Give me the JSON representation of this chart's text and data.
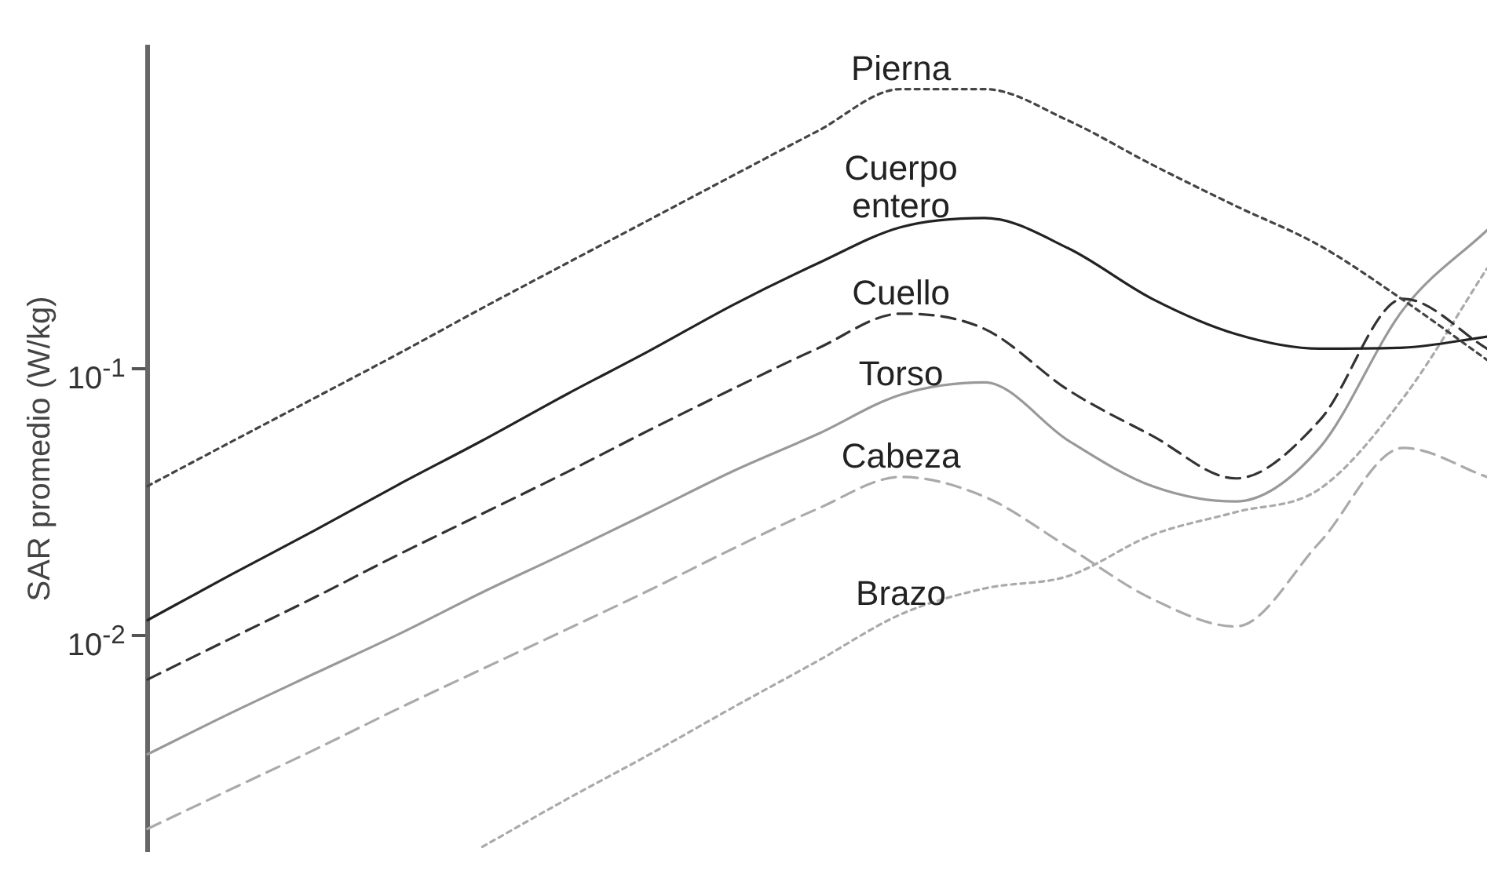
{
  "chart_data": {
    "type": "line",
    "ylabel": "SAR promedio (W/kg)",
    "log": "y",
    "grid": false,
    "legend": false,
    "tick_labels": "y",
    "marker": "none",
    "categories": [
      null,
      null,
      null,
      null,
      null,
      null,
      null,
      null,
      null,
      null,
      null,
      null,
      null,
      null,
      null,
      null,
      null
    ],
    "ylim": [
      0.00156,
      1.61
    ],
    "yticks": [
      {
        "value": 0.01,
        "label": "10$^{-2}$"
      },
      {
        "value": 0.1,
        "label": "10$^{-1}$"
      }
    ],
    "series": [
      {
        "name": "Pierna",
        "color": "#444444",
        "line_style": "dotted",
        "values": [
          0.0363,
          0.0532,
          0.0778,
          0.114,
          0.169,
          0.248,
          0.363,
          0.532,
          0.778,
          1.12,
          1.12,
          0.853,
          0.583,
          0.408,
          0.29,
          0.181,
          0.108
        ]
      },
      {
        "name": "Cuerpo entero",
        "color": "#222222",
        "line_style": "solid",
        "values": [
          0.0114,
          0.0169,
          0.0248,
          0.0368,
          0.0538,
          0.08,
          0.117,
          0.174,
          0.248,
          0.34,
          0.368,
          0.283,
          0.183,
          0.135,
          0.119,
          0.12,
          0.132
        ]
      },
      {
        "name": "Cuello",
        "color": "#333333",
        "line_style": "dashed",
        "values": [
          0.00683,
          0.00975,
          0.0139,
          0.0201,
          0.0286,
          0.0408,
          0.059,
          0.0843,
          0.119,
          0.161,
          0.141,
          0.0832,
          0.0561,
          0.0388,
          0.064,
          0.183,
          0.119
        ]
      },
      {
        "name": "Torso",
        "color": "#999999",
        "line_style": "solid",
        "values": [
          0.00358,
          0.00512,
          0.0072,
          0.0101,
          0.0145,
          0.0204,
          0.029,
          0.0414,
          0.0568,
          0.08,
          0.0889,
          0.0538,
          0.0363,
          0.0318,
          0.0505,
          0.167,
          0.331
        ]
      },
      {
        "name": "Cabeza",
        "color": "#aaaaaa",
        "line_style": "dashed",
        "values": [
          0.00188,
          0.00265,
          0.00373,
          0.00532,
          0.00748,
          0.0105,
          0.0148,
          0.0212,
          0.0298,
          0.0393,
          0.0331,
          0.0214,
          0.0137,
          0.0108,
          0.0223,
          0.0505,
          0.0393
        ]
      },
      {
        "name": "Brazo",
        "color": "#aaaaaa",
        "line_style": "dotted",
        "values": [
          null,
          null,
          null,
          null,
          0.00161,
          0.00242,
          0.00358,
          0.00538,
          0.008,
          0.012,
          0.015,
          0.0167,
          0.0238,
          0.029,
          0.0354,
          0.0778,
          0.238
        ]
      }
    ]
  }
}
